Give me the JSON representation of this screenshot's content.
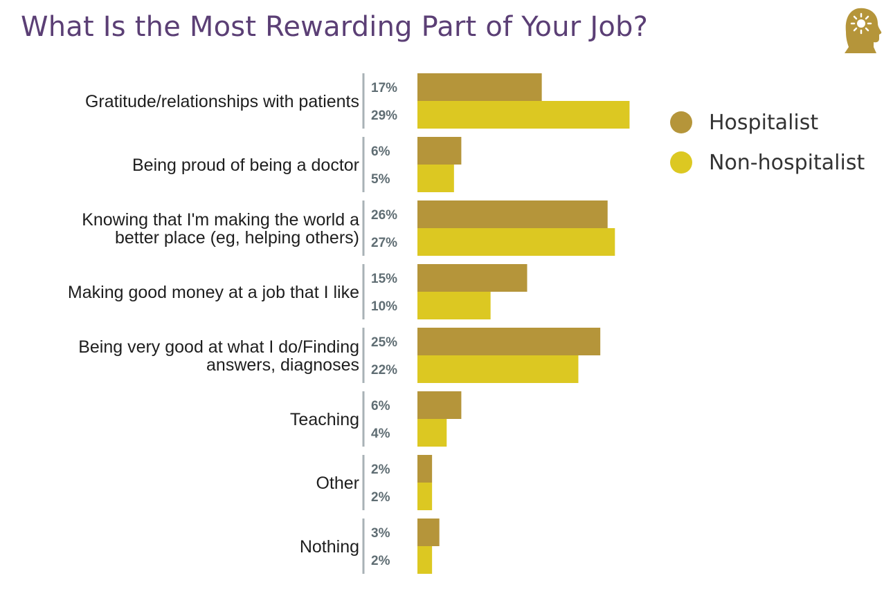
{
  "colors": {
    "title": "#5b3f75",
    "hospitalist": "#b5953a",
    "non_hospitalist": "#dcc822",
    "divider": "#a8b2b6",
    "value_text": "#5f6d73",
    "logo": "#b5953a"
  },
  "logo_icon": "head-with-lightbulb-icon",
  "chart_data": {
    "type": "bar",
    "orientation": "horizontal",
    "title": "What Is the Most Rewarding Part of Your Job?",
    "categories": [
      [
        "Gratitude/relationships with patients"
      ],
      [
        "Being proud of being a doctor"
      ],
      [
        "Knowing that I'm making the world a",
        "better place (eg, helping others)"
      ],
      [
        "Making good money at a job that I like"
      ],
      [
        "Being very good at what I do/Finding",
        "answers, diagnoses"
      ],
      [
        "Teaching"
      ],
      [
        "Other"
      ],
      [
        "Nothing"
      ]
    ],
    "series": [
      {
        "name": "Hospitalist",
        "values": [
          17,
          6,
          26,
          15,
          25,
          6,
          2,
          3
        ],
        "labels": [
          "17%",
          "6%",
          "26%",
          "15%",
          "25%",
          "6%",
          "2%",
          "3%"
        ]
      },
      {
        "name": "Non-hospitalist",
        "values": [
          29,
          5,
          27,
          10,
          22,
          4,
          2,
          2
        ],
        "labels": [
          "29%",
          "5%",
          "27%",
          "10%",
          "22%",
          "4%",
          "2%",
          "2%"
        ]
      }
    ],
    "unit": "%",
    "xlim": [
      0,
      30
    ],
    "legend": {
      "position": "right",
      "items": [
        "Hospitalist",
        "Non-hospitalist"
      ]
    },
    "grid": false
  }
}
